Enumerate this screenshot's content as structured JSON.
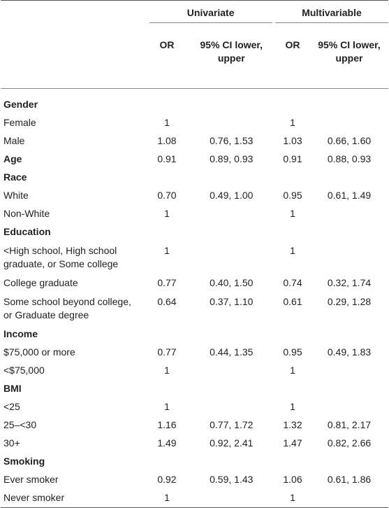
{
  "header": {
    "univariate": "Univariate",
    "multivariable": "Multivariable",
    "or_uni": "OR",
    "ci_uni": "95% CI lower, upper",
    "or_multi": "OR",
    "ci_multi": "95% CI lower, upper"
  },
  "rows": [
    {
      "label": "Gender",
      "bold": true,
      "or1": "",
      "ci1": "",
      "or2": "",
      "ci2": ""
    },
    {
      "label": "Female",
      "or1": "1",
      "ci1": "",
      "or2": "1",
      "ci2": ""
    },
    {
      "label": "Male",
      "or1": "1.08",
      "ci1": "0.76, 1.53",
      "or2": "1.03",
      "ci2": "0.66, 1.60"
    },
    {
      "label": "Age",
      "bold": true,
      "or1": "0.91",
      "ci1": "0.89, 0.93",
      "or2": "0.91",
      "ci2": "0.88, 0.93"
    },
    {
      "label": "Race",
      "bold": true,
      "or1": "",
      "ci1": "",
      "or2": "",
      "ci2": ""
    },
    {
      "label": "White",
      "or1": "0.70",
      "ci1": "0.49, 1.00",
      "or2": "0.95",
      "ci2": "0.61, 1.49"
    },
    {
      "label": "Non-White",
      "or1": "1",
      "ci1": "",
      "or2": "1",
      "ci2": ""
    },
    {
      "label": "Education",
      "bold": true,
      "or1": "",
      "ci1": "",
      "or2": "",
      "ci2": ""
    },
    {
      "label": "<High school, High school graduate, or Some college",
      "or1": "1",
      "ci1": "",
      "or2": "1",
      "ci2": ""
    },
    {
      "label": "College graduate",
      "or1": "0.77",
      "ci1": "0.40, 1.50",
      "or2": "0.74",
      "ci2": "0.32, 1.74"
    },
    {
      "label": "Some school beyond college, or Graduate degree",
      "or1": "0.64",
      "ci1": "0.37, 1.10",
      "or2": "0.61",
      "ci2": "0.29, 1.28"
    },
    {
      "label": "Income",
      "bold": true,
      "or1": "",
      "ci1": "",
      "or2": "",
      "ci2": ""
    },
    {
      "label": "$75,000 or more",
      "or1": "0.77",
      "ci1": "0.44, 1.35",
      "or2": "0.95",
      "ci2": "0.49, 1.83"
    },
    {
      "label": "<$75,000",
      "or1": "1",
      "ci1": "",
      "or2": "1",
      "ci2": ""
    },
    {
      "label": "BMI",
      "bold": true,
      "or1": "",
      "ci1": "",
      "or2": "",
      "ci2": ""
    },
    {
      "label": "<25",
      "or1": "1",
      "ci1": "",
      "or2": "1",
      "ci2": ""
    },
    {
      "label": "25–<30",
      "or1": "1.16",
      "ci1": "0.77, 1.72",
      "or2": "1.32",
      "ci2": "0.81, 2.17"
    },
    {
      "label": "30+",
      "or1": "1.49",
      "ci1": "0.92, 2.41",
      "or2": "1.47",
      "ci2": "0.82, 2.66"
    },
    {
      "label": "Smoking",
      "bold": true,
      "or1": "",
      "ci1": "",
      "or2": "",
      "ci2": ""
    },
    {
      "label": "Ever smoker",
      "or1": "0.92",
      "ci1": "0.59, 1.43",
      "or2": "1.06",
      "ci2": "0.61, 1.86"
    },
    {
      "label": "Never smoker",
      "or1": "1",
      "ci1": "",
      "or2": "1",
      "ci2": ""
    }
  ]
}
